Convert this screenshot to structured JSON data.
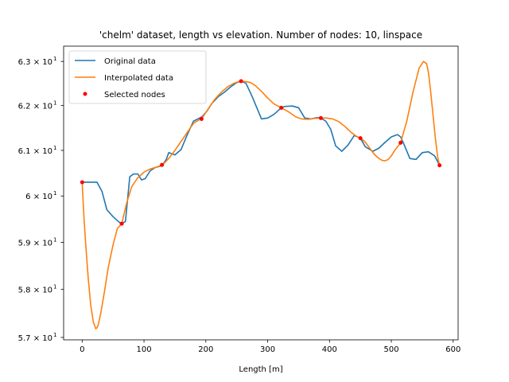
{
  "chart_data": {
    "type": "line",
    "title": "'chelm' dataset, length vs elevation. Number of nodes: 10, linspace",
    "xlabel": "Length [m]",
    "ylabel": "",
    "xlim": [
      -30,
      608
    ],
    "ylim": [
      56.95,
      63.35
    ],
    "y_scale": "log",
    "grid": false,
    "legend_position": "top-left",
    "x_ticks": [
      0,
      100,
      200,
      300,
      400,
      500,
      600
    ],
    "x_tick_labels": [
      "0",
      "100",
      "200",
      "300",
      "400",
      "500",
      "600"
    ],
    "y_ticks": [
      57,
      58,
      59,
      60,
      61,
      62,
      63
    ],
    "y_tick_labels": [
      "5.7 × 10",
      "5.8 × 10",
      "5.9 × 10",
      "6 × 10",
      "6.1 × 10",
      "6.2 × 10",
      "6.3 × 10"
    ],
    "y_tick_exponent": "1",
    "series": [
      {
        "name": "Original data",
        "color": "#1f77b4",
        "style": "line",
        "x": [
          0,
          8,
          15,
          24,
          32,
          40,
          50,
          60,
          64,
          70,
          77,
          83,
          90,
          96,
          102,
          110,
          118,
          126,
          130,
          136,
          140,
          150,
          160,
          170,
          180,
          190,
          194,
          202,
          210,
          220,
          230,
          240,
          250,
          258,
          265,
          275,
          290,
          300,
          310,
          322,
          328,
          340,
          350,
          360,
          370,
          380,
          386,
          394,
          402,
          410,
          420,
          430,
          440,
          450,
          458,
          470,
          480,
          490,
          500,
          510,
          515,
          520,
          530,
          540,
          550,
          560,
          570,
          578
        ],
        "y": [
          60.3,
          60.3,
          60.3,
          60.3,
          60.1,
          59.7,
          59.55,
          59.43,
          59.4,
          59.45,
          60.42,
          60.48,
          60.48,
          60.35,
          60.38,
          60.55,
          60.62,
          60.65,
          60.68,
          60.8,
          60.95,
          60.9,
          61.02,
          61.35,
          61.65,
          61.72,
          61.75,
          61.88,
          62.05,
          62.2,
          62.3,
          62.42,
          62.52,
          62.55,
          62.5,
          62.2,
          61.7,
          61.72,
          61.8,
          61.95,
          61.98,
          61.99,
          61.95,
          61.72,
          61.7,
          61.73,
          61.72,
          61.65,
          61.47,
          61.1,
          60.98,
          61.12,
          61.33,
          61.27,
          61.08,
          60.98,
          61.05,
          61.18,
          61.3,
          61.35,
          61.3,
          61.15,
          60.82,
          60.8,
          60.95,
          60.97,
          60.88,
          60.67
        ]
      },
      {
        "name": "Interpolated data",
        "color": "#ff7f0e",
        "style": "line",
        "x": [
          0,
          3,
          6,
          10,
          14,
          18,
          22,
          24,
          26,
          30,
          36,
          42,
          50,
          57,
          64,
          72,
          80,
          90,
          100,
          110,
          120,
          130,
          140,
          150,
          160,
          170,
          180,
          194,
          205,
          215,
          225,
          235,
          245,
          255,
          258,
          265,
          272,
          280,
          290,
          300,
          310,
          322,
          335,
          345,
          355,
          365,
          375,
          386,
          395,
          405,
          415,
          425,
          435,
          445,
          451,
          458,
          465,
          472,
          479,
          485,
          490,
          495,
          500,
          505,
          515,
          525,
          535,
          545,
          552,
          557,
          560,
          563,
          567,
          571,
          575,
          578
        ],
        "y": [
          60.3,
          59.5,
          58.9,
          58.2,
          57.65,
          57.32,
          57.18,
          57.2,
          57.26,
          57.5,
          57.95,
          58.45,
          58.95,
          59.3,
          59.4,
          59.85,
          60.2,
          60.4,
          60.52,
          60.59,
          60.63,
          60.68,
          60.82,
          61.0,
          61.2,
          61.4,
          61.6,
          61.72,
          61.95,
          62.15,
          62.3,
          62.42,
          62.5,
          62.55,
          62.55,
          62.54,
          62.52,
          62.45,
          62.32,
          62.17,
          62.04,
          61.95,
          61.85,
          61.75,
          61.7,
          61.69,
          61.71,
          61.72,
          61.72,
          61.7,
          61.64,
          61.53,
          61.4,
          61.3,
          61.27,
          61.18,
          61.05,
          60.92,
          60.83,
          60.78,
          60.77,
          60.8,
          60.88,
          60.99,
          61.17,
          61.65,
          62.3,
          62.85,
          63.0,
          62.95,
          62.75,
          62.4,
          61.85,
          61.3,
          60.85,
          60.67
        ]
      },
      {
        "name": "Selected nodes",
        "color": "#ff0000",
        "style": "markers",
        "x": [
          0,
          64,
          129,
          193,
          257,
          322,
          386,
          450,
          515,
          578
        ],
        "y": [
          60.3,
          59.4,
          60.68,
          61.7,
          62.55,
          61.95,
          61.72,
          61.27,
          61.17,
          60.67
        ]
      }
    ]
  }
}
